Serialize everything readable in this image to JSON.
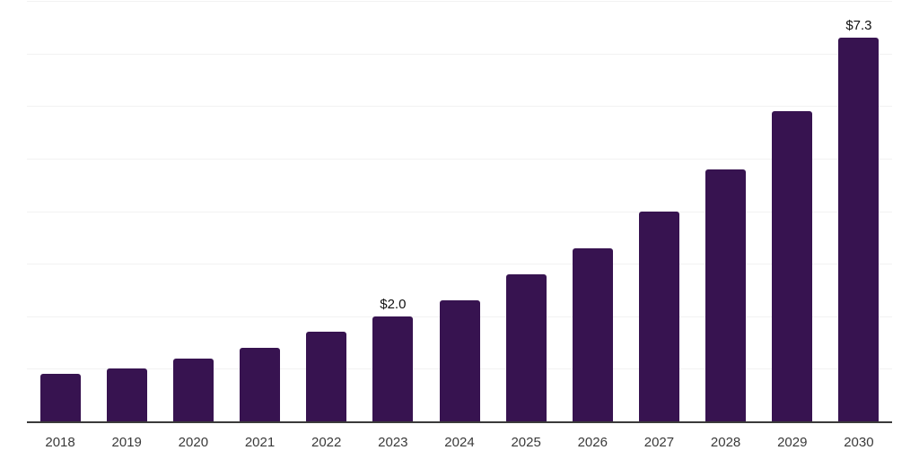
{
  "page": {
    "background": "#ffffff"
  },
  "chart_data": {
    "type": "bar",
    "title": "",
    "xlabel": "",
    "ylabel": "",
    "categories": [
      "2018",
      "2019",
      "2020",
      "2021",
      "2022",
      "2023",
      "2024",
      "2025",
      "2026",
      "2027",
      "2028",
      "2029",
      "2030"
    ],
    "values": [
      0.9,
      1.0,
      1.2,
      1.4,
      1.7,
      2.0,
      2.3,
      2.8,
      3.3,
      4.0,
      4.8,
      5.9,
      7.3
    ],
    "value_labels": {
      "2023": "$2.0",
      "2030": "$7.3"
    },
    "ylim": [
      0,
      8
    ],
    "gridline_step": 1,
    "grid": "horizontal",
    "legend": "none",
    "y_axis_labels": "none",
    "colors": {
      "bar": "#371350",
      "axis_line": "#3a3a3a",
      "gridline": "#f2f2f2",
      "tick_label": "#3a3a3a",
      "value_label": "#111111",
      "background": "#ffffff"
    }
  }
}
